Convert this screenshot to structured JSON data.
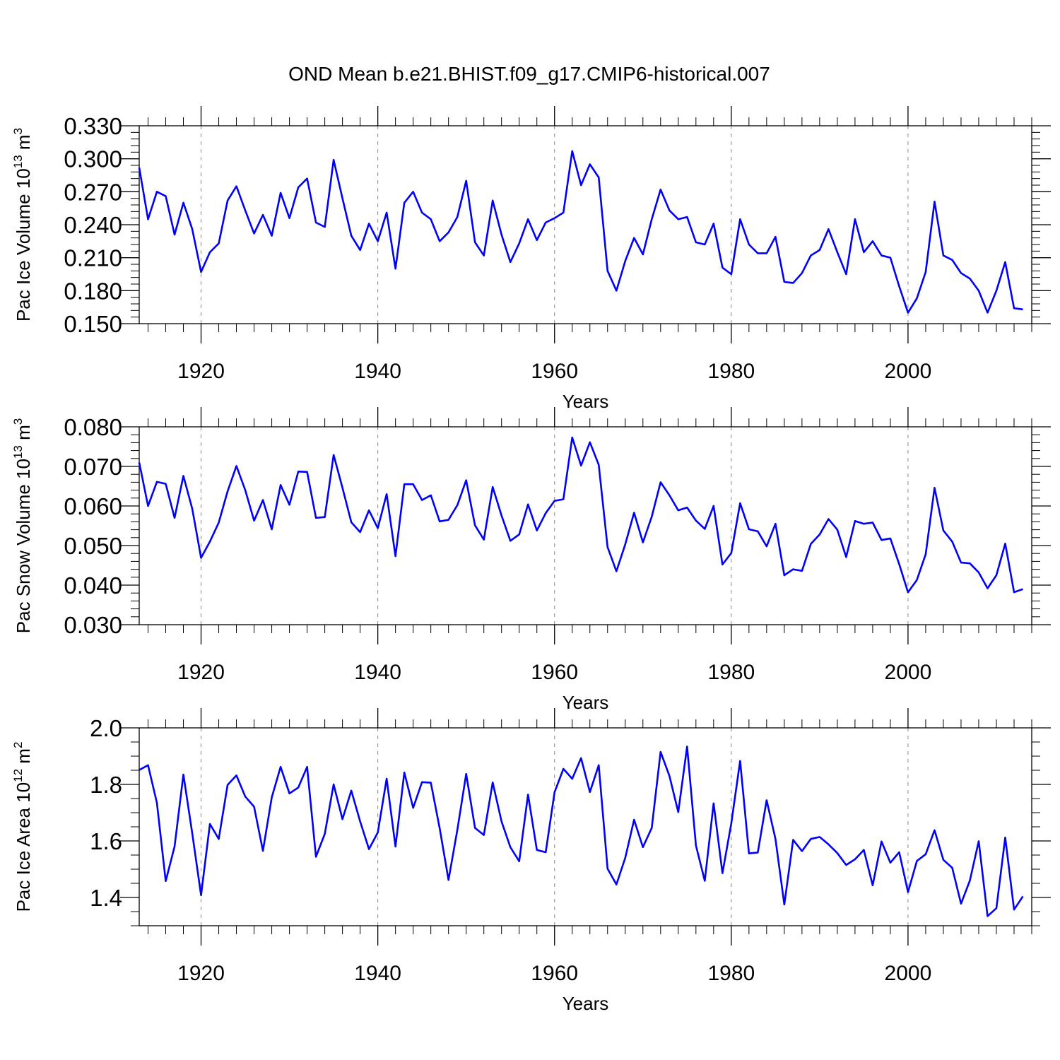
{
  "title": "OND Mean b.e21.BHIST.f09_g17.CMIP6-historical.007",
  "chart_data": [
    {
      "type": "line",
      "ylabel": {
        "base": "Pac Ice Volume 10",
        "exp": "13",
        "unit": " m",
        "unit_exp": "3"
      },
      "xlabel": "Years",
      "xlim": [
        1913,
        2014
      ],
      "ylim": [
        0.15,
        0.33
      ],
      "yticks": [
        0.15,
        0.18,
        0.21,
        0.24,
        0.27,
        0.3,
        0.33
      ],
      "ytick_labels": [
        "0.150",
        "0.180",
        "0.210",
        "0.240",
        "0.270",
        "0.300",
        "0.330"
      ],
      "yminor_step": 0.006,
      "xticks": [
        1920,
        1940,
        1960,
        1980,
        2000
      ],
      "xtick_labels": [
        "1920",
        "1940",
        "1960",
        "1980",
        "2000"
      ],
      "color": "#0000ff",
      "x_start": 1913,
      "values": [
        0.292,
        0.245,
        0.27,
        0.266,
        0.231,
        0.26,
        0.236,
        0.197,
        0.215,
        0.223,
        0.262,
        0.275,
        0.253,
        0.232,
        0.249,
        0.23,
        0.269,
        0.246,
        0.274,
        0.282,
        0.242,
        0.238,
        0.299,
        0.264,
        0.23,
        0.217,
        0.241,
        0.225,
        0.251,
        0.2,
        0.26,
        0.27,
        0.251,
        0.245,
        0.225,
        0.233,
        0.247,
        0.28,
        0.224,
        0.212,
        0.262,
        0.231,
        0.206,
        0.223,
        0.245,
        0.226,
        0.242,
        0.246,
        0.251,
        0.307,
        0.276,
        0.295,
        0.283,
        0.198,
        0.18,
        0.207,
        0.228,
        0.213,
        0.245,
        0.272,
        0.253,
        0.245,
        0.247,
        0.224,
        0.222,
        0.241,
        0.201,
        0.195,
        0.245,
        0.222,
        0.214,
        0.214,
        0.229,
        0.188,
        0.187,
        0.196,
        0.212,
        0.217,
        0.236,
        0.215,
        0.195,
        0.245,
        0.215,
        0.225,
        0.212,
        0.21,
        0.184,
        0.16,
        0.173,
        0.197,
        0.261,
        0.212,
        0.208,
        0.196,
        0.191,
        0.18,
        0.16,
        0.18,
        0.206,
        0.164,
        0.163
      ]
    },
    {
      "type": "line",
      "ylabel": {
        "base": "Pac Snow Volume 10",
        "exp": "13",
        "unit": " m",
        "unit_exp": "3"
      },
      "xlabel": "Years",
      "xlim": [
        1913,
        2014
      ],
      "ylim": [
        0.03,
        0.08
      ],
      "yticks": [
        0.03,
        0.04,
        0.05,
        0.06,
        0.07,
        0.08
      ],
      "ytick_labels": [
        "0.030",
        "0.040",
        "0.050",
        "0.060",
        "0.070",
        "0.080"
      ],
      "yminor_step": 0.002,
      "xticks": [
        1920,
        1940,
        1960,
        1980,
        2000
      ],
      "xtick_labels": [
        "1920",
        "1940",
        "1960",
        "1980",
        "2000"
      ],
      "color": "#0000ff",
      "x_start": 1913,
      "values": [
        0.071,
        0.06,
        0.0661,
        0.0656,
        0.057,
        0.0676,
        0.0593,
        0.0469,
        0.051,
        0.0558,
        0.0637,
        0.0701,
        0.064,
        0.0563,
        0.0615,
        0.0541,
        0.0653,
        0.0603,
        0.0687,
        0.0686,
        0.057,
        0.0572,
        0.0729,
        0.0646,
        0.0559,
        0.0534,
        0.0589,
        0.0544,
        0.063,
        0.0473,
        0.0655,
        0.0655,
        0.0615,
        0.0627,
        0.0561,
        0.0565,
        0.0602,
        0.0665,
        0.0551,
        0.0515,
        0.0648,
        0.0576,
        0.0512,
        0.0528,
        0.0604,
        0.0538,
        0.0582,
        0.0613,
        0.0617,
        0.0773,
        0.0702,
        0.0761,
        0.0704,
        0.0496,
        0.0435,
        0.0503,
        0.0583,
        0.0508,
        0.0573,
        0.066,
        0.0627,
        0.0589,
        0.0596,
        0.0563,
        0.0542,
        0.06,
        0.0452,
        0.0481,
        0.0607,
        0.0541,
        0.0536,
        0.0498,
        0.0555,
        0.0425,
        0.044,
        0.0436,
        0.0504,
        0.0528,
        0.0567,
        0.054,
        0.0471,
        0.0562,
        0.0555,
        0.0558,
        0.0514,
        0.0518,
        0.0453,
        0.0382,
        0.0413,
        0.0478,
        0.0646,
        0.0538,
        0.051,
        0.0457,
        0.0455,
        0.0432,
        0.0392,
        0.0425,
        0.0505,
        0.0382,
        0.039
      ]
    },
    {
      "type": "line",
      "ylabel": {
        "base": "Pac Ice Area 10",
        "exp": "12",
        "unit": " m",
        "unit_exp": "2"
      },
      "xlabel": "Years",
      "xlim": [
        1913,
        2014
      ],
      "ylim": [
        1.3,
        2.0
      ],
      "yticks": [
        1.4,
        1.6,
        1.8,
        2.0
      ],
      "ytick_labels": [
        "1.4",
        "1.6",
        "1.8",
        "2.0"
      ],
      "yminor_step": 0.05,
      "xticks": [
        1920,
        1940,
        1960,
        1980,
        2000
      ],
      "xtick_labels": [
        "1920",
        "1940",
        "1960",
        "1980",
        "2000"
      ],
      "color": "#0000ff",
      "x_start": 1913,
      "values": [
        1.851,
        1.868,
        1.735,
        1.458,
        1.58,
        1.835,
        1.627,
        1.408,
        1.66,
        1.607,
        1.798,
        1.832,
        1.757,
        1.721,
        1.565,
        1.754,
        1.862,
        1.768,
        1.789,
        1.862,
        1.544,
        1.625,
        1.8,
        1.677,
        1.778,
        1.669,
        1.571,
        1.63,
        1.82,
        1.58,
        1.842,
        1.717,
        1.808,
        1.806,
        1.645,
        1.462,
        1.639,
        1.837,
        1.646,
        1.621,
        1.807,
        1.669,
        1.578,
        1.528,
        1.764,
        1.568,
        1.56,
        1.772,
        1.855,
        1.82,
        1.893,
        1.773,
        1.868,
        1.502,
        1.446,
        1.54,
        1.675,
        1.578,
        1.646,
        1.915,
        1.83,
        1.702,
        1.934,
        1.584,
        1.459,
        1.733,
        1.486,
        1.662,
        1.883,
        1.556,
        1.559,
        1.744,
        1.607,
        1.375,
        1.604,
        1.564,
        1.607,
        1.614,
        1.588,
        1.557,
        1.515,
        1.535,
        1.568,
        1.443,
        1.598,
        1.523,
        1.56,
        1.419,
        1.529,
        1.553,
        1.638,
        1.533,
        1.505,
        1.378,
        1.46,
        1.599,
        1.334,
        1.362,
        1.612,
        1.357,
        1.404
      ]
    }
  ]
}
